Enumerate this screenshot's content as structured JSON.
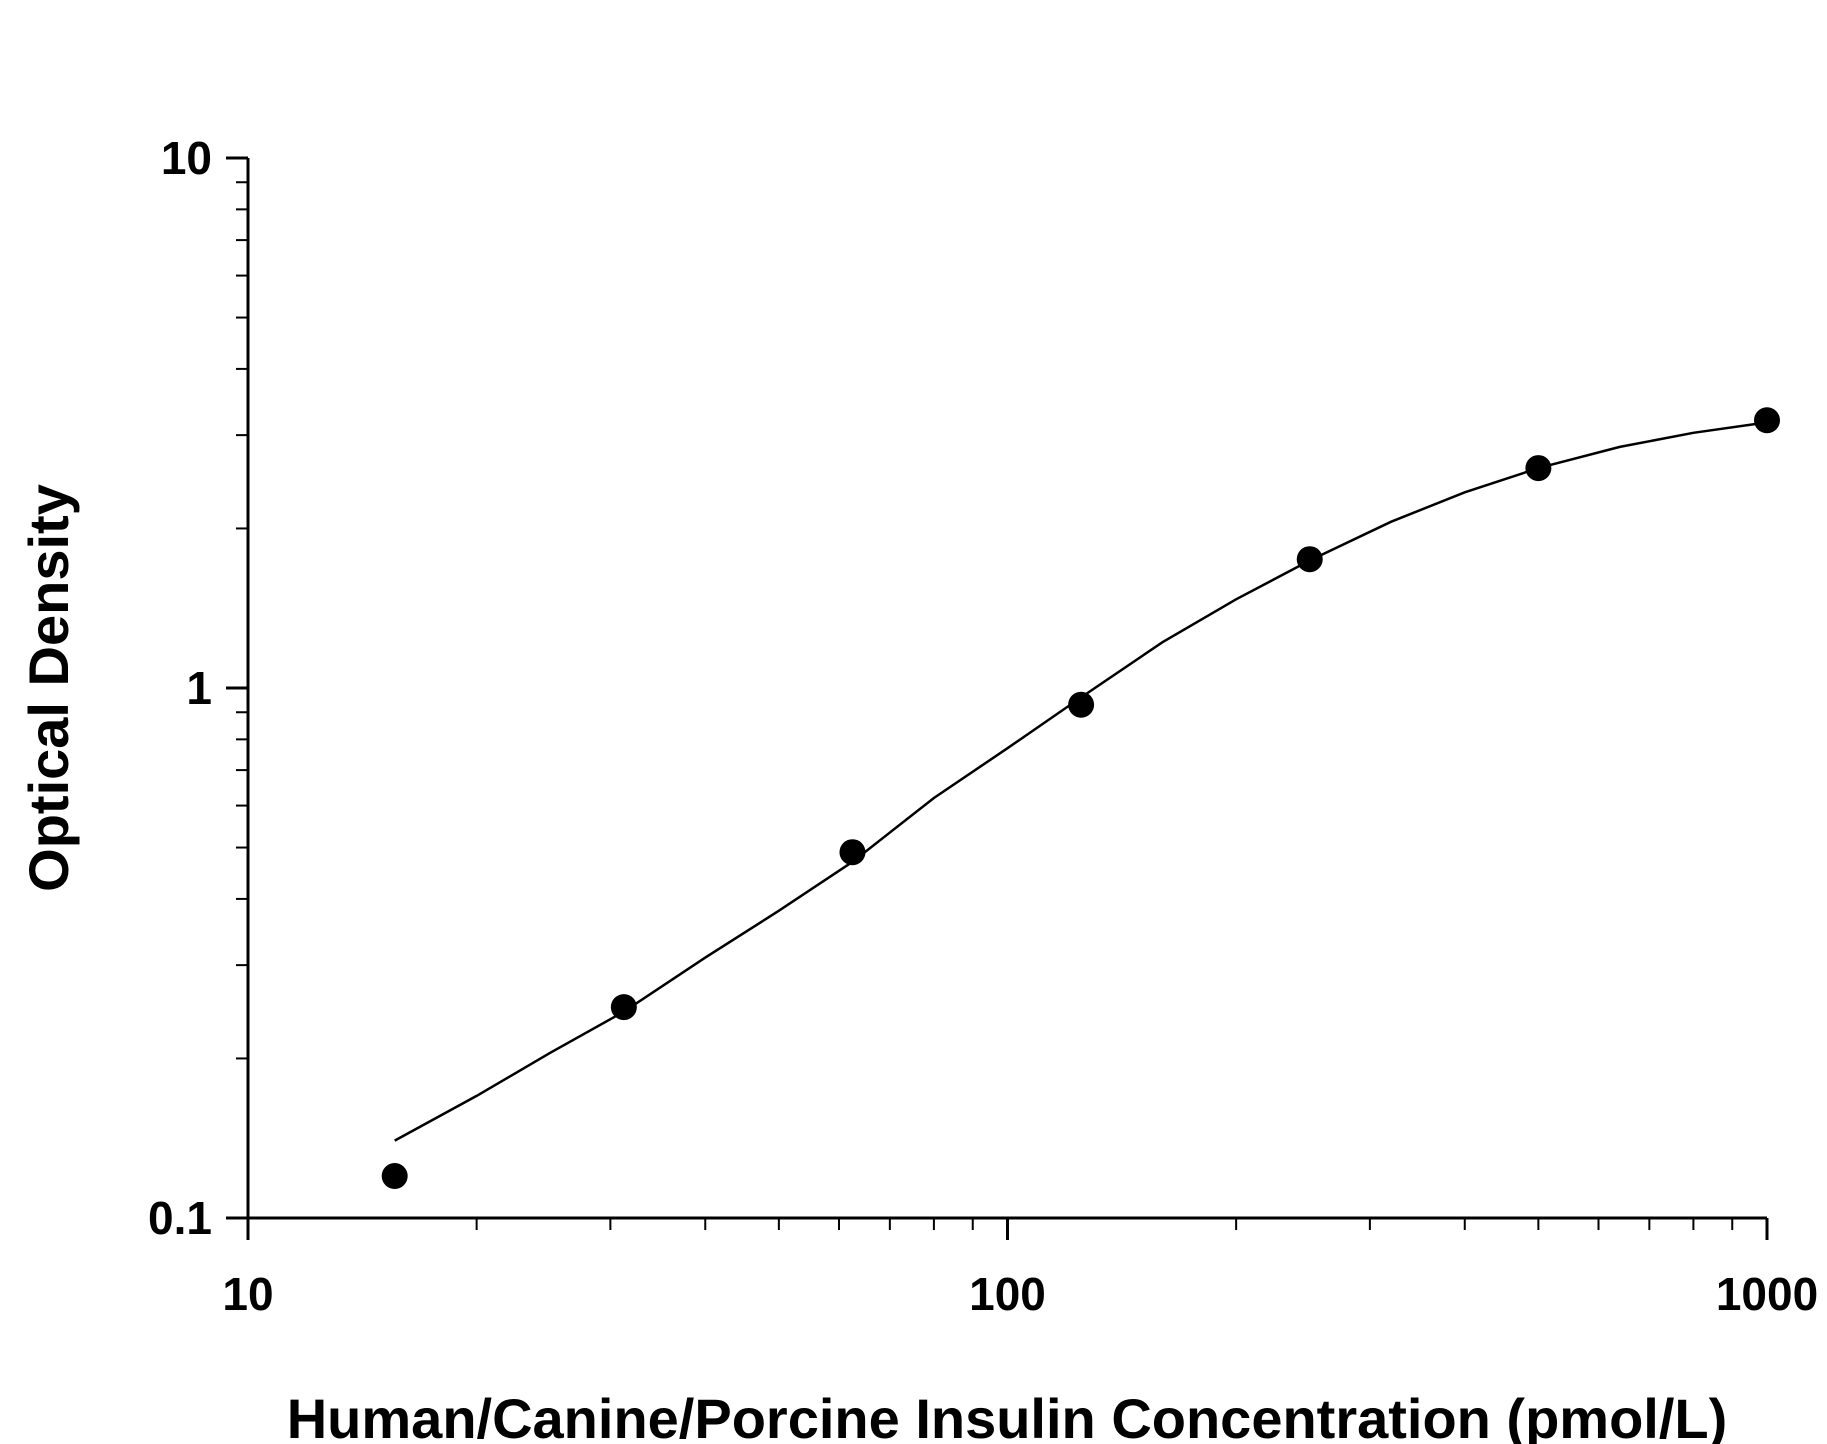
{
  "chart_data": {
    "type": "scatter",
    "title": "",
    "xlabel": "Human/Canine/Porcine Insulin Concentration (pmol/L)",
    "ylabel": "Optical Density",
    "x_scale": "log",
    "y_scale": "log",
    "xlim": [
      10,
      1000
    ],
    "ylim": [
      0.1,
      10
    ],
    "x_tick_labels": [
      "10",
      "100",
      "1000"
    ],
    "y_tick_labels": [
      "0.1",
      "1",
      "10"
    ],
    "grid": false,
    "legend": "none",
    "colors": {
      "points": "#000000",
      "curve": "#000000",
      "axes": "#000000"
    },
    "series": [
      {
        "x": [
          15.6,
          31.25,
          62.5,
          125,
          250,
          500,
          1000
        ],
        "y": [
          0.12,
          0.25,
          0.49,
          0.93,
          1.75,
          2.6,
          3.2
        ]
      }
    ],
    "fit_curve": {
      "x": [
        15.6,
        20,
        25,
        31.25,
        40,
        50,
        62.5,
        80,
        100,
        125,
        160,
        200,
        250,
        320,
        400,
        500,
        640,
        800,
        1000
      ],
      "y": [
        0.14,
        0.17,
        0.205,
        0.245,
        0.31,
        0.38,
        0.47,
        0.62,
        0.77,
        0.96,
        1.22,
        1.47,
        1.74,
        2.06,
        2.34,
        2.6,
        2.85,
        3.03,
        3.17
      ]
    }
  }
}
